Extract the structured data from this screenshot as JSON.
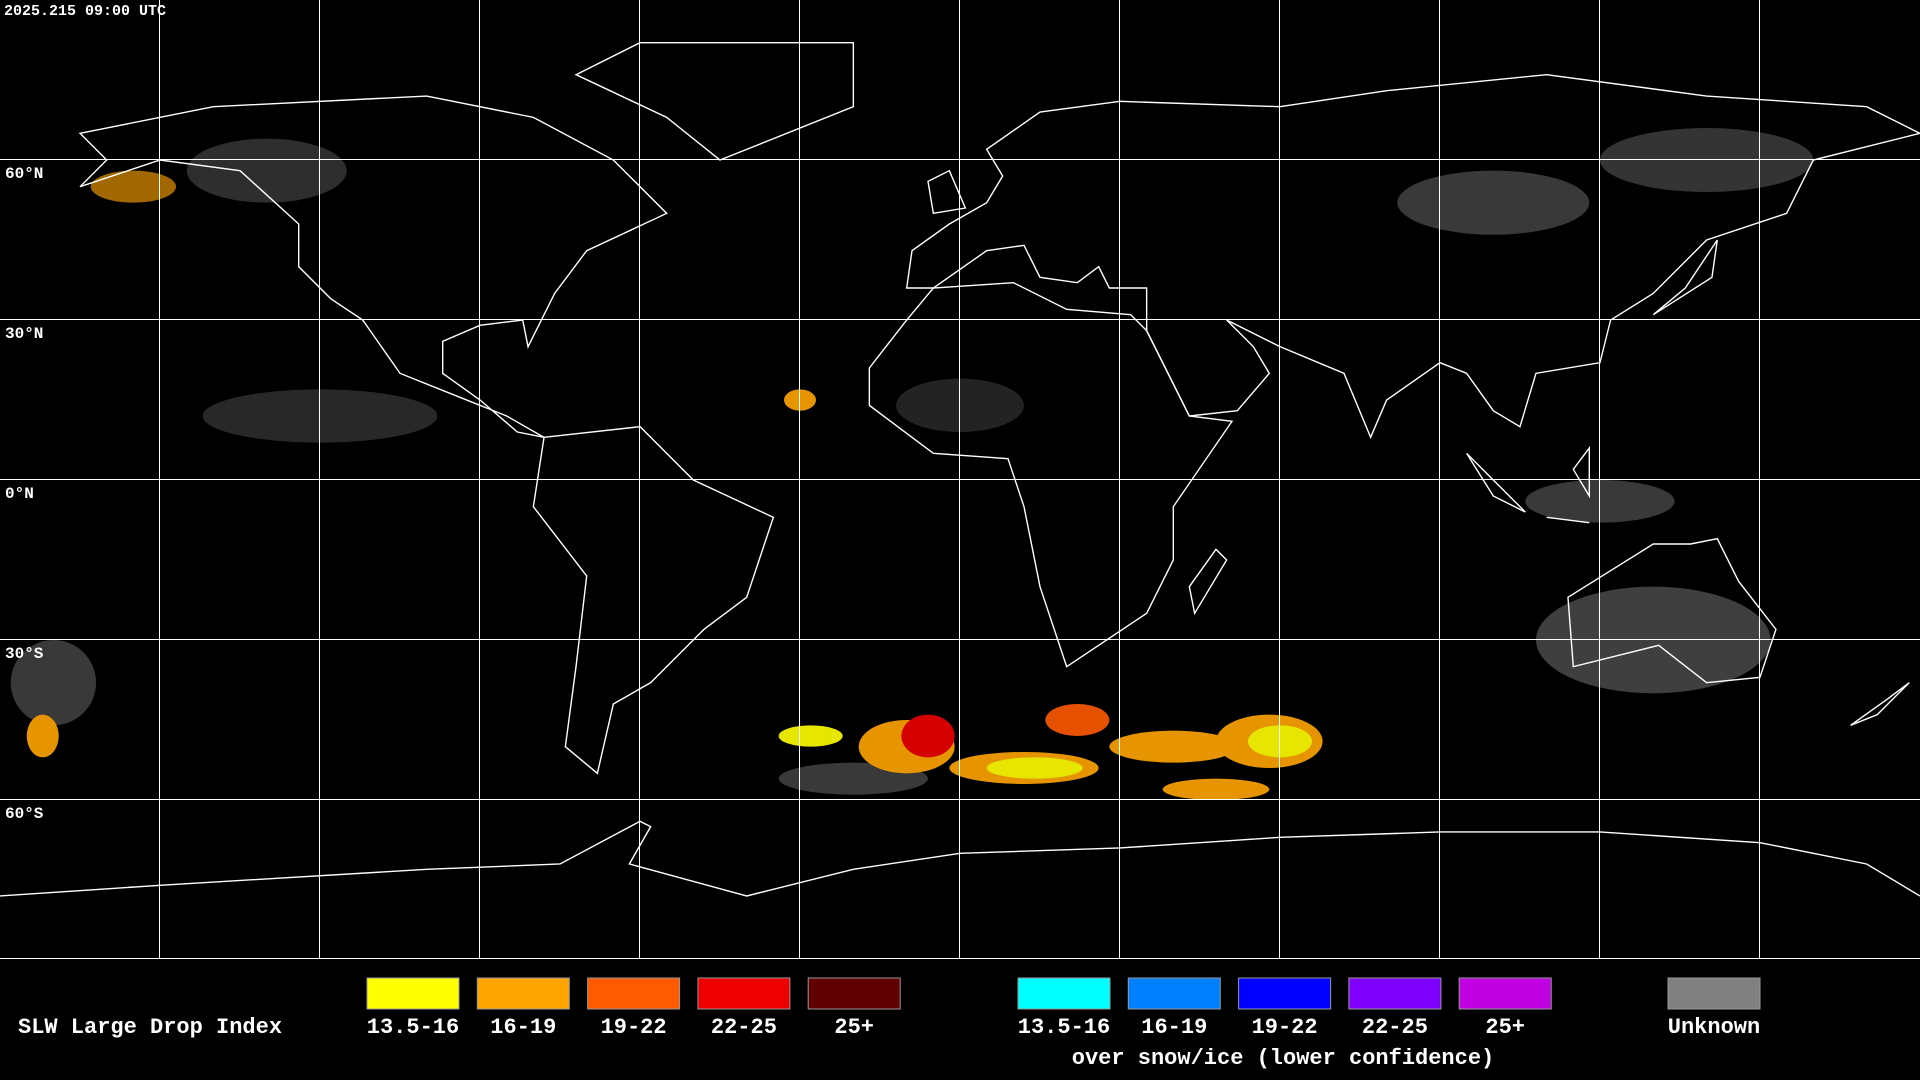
{
  "header": {
    "timestamp": "2025.215 09:00 UTC"
  },
  "map": {
    "latitude_labels": [
      "60°N",
      "30°N",
      "0°N",
      "30°S",
      "60°S"
    ]
  },
  "legend": {
    "title": "SLW Large Drop Index",
    "items": [
      {
        "label": "13.5-16",
        "color": "#ffff00"
      },
      {
        "label": "16-19",
        "color": "#ffa500"
      },
      {
        "label": "19-22",
        "color": "#ff5a00"
      },
      {
        "label": "22-25",
        "color": "#ee0000"
      },
      {
        "label": "25+",
        "color": "#600000"
      }
    ],
    "snow_ice_items": [
      {
        "label": "13.5-16",
        "color": "#00ffff"
      },
      {
        "label": "16-19",
        "color": "#0080ff"
      },
      {
        "label": "19-22",
        "color": "#0000ff"
      },
      {
        "label": "22-25",
        "color": "#8000ff"
      },
      {
        "label": "25+",
        "color": "#c000e0"
      }
    ],
    "snow_ice_note": "over snow/ice (lower confidence)",
    "unknown": {
      "label": "Unknown",
      "color": "#808080"
    }
  }
}
